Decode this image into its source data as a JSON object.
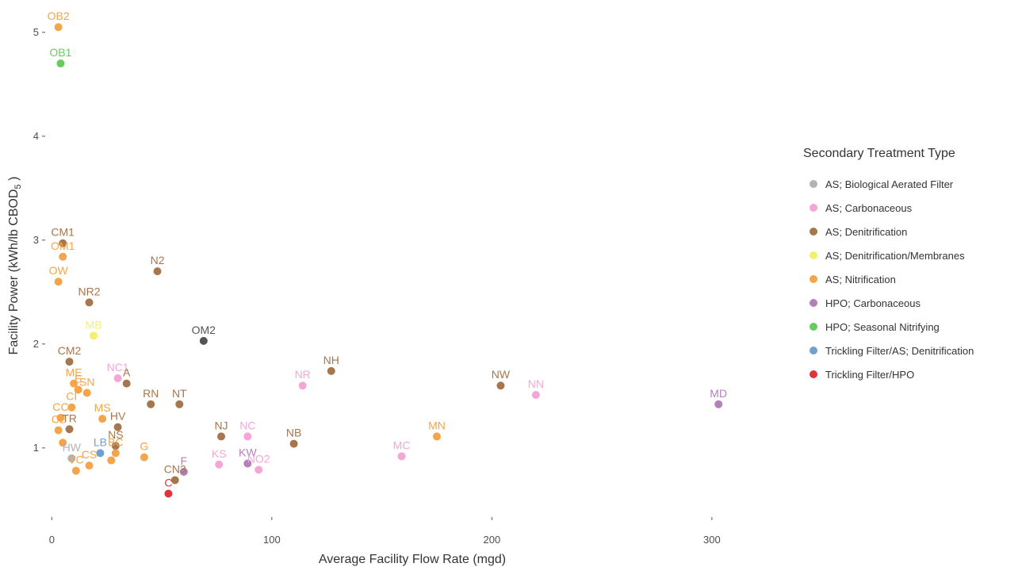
{
  "chart_data": {
    "type": "scatter",
    "xlabel": "Average Facility Flow Rate (mgd)",
    "ylabel": "Facility Power (kWh/lb CBOD",
    "ylabel_sub": "5",
    "ylabel_end": " )",
    "xlim": [
      -3,
      335
    ],
    "ylim": [
      0.35,
      5.25
    ],
    "x_ticks": [
      0,
      100,
      200,
      300
    ],
    "y_ticks": [
      1,
      2,
      3,
      4,
      5
    ],
    "grid": false,
    "legend": {
      "title": "Secondary Treatment Type",
      "position": "right",
      "entries": [
        {
          "name": "AS; Biological Aerated Filter",
          "color": "#b3b3b3"
        },
        {
          "name": "AS; Carbonaceous",
          "color": "#f4a6d7"
        },
        {
          "name": "AS; Denitrification",
          "color": "#a6764d"
        },
        {
          "name": "AS; Denitrification/Membranes",
          "color": "#f5f06a"
        },
        {
          "name": "AS; Nitrification",
          "color": "#f4a44a"
        },
        {
          "name": "HPO; Carbonaceous",
          "color": "#b77fb8"
        },
        {
          "name": "HPO; Seasonal Nitrifying",
          "color": "#66cc5c"
        },
        {
          "name": "Trickling Filter/AS; Denitrification",
          "color": "#6fa0cf"
        },
        {
          "name": "Trickling Filter/HPO",
          "color": "#e3333a"
        }
      ]
    },
    "points": [
      {
        "label": "OB2",
        "x": 3,
        "y": 5.05,
        "color": "#f4a44a"
      },
      {
        "label": "OB1",
        "x": 4,
        "y": 4.7,
        "color": "#66cc5c"
      },
      {
        "label": "CM1",
        "x": 5,
        "y": 2.97,
        "color": "#a6764d"
      },
      {
        "label": "OM1",
        "x": 5,
        "y": 2.84,
        "color": "#f4a44a"
      },
      {
        "label": "OW",
        "x": 3,
        "y": 2.6,
        "color": "#f4a44a"
      },
      {
        "label": "N2",
        "x": 48,
        "y": 2.7,
        "color": "#a6764d"
      },
      {
        "label": "NR2",
        "x": 17,
        "y": 2.4,
        "color": "#a6764d"
      },
      {
        "label": "MB",
        "x": 19,
        "y": 2.08,
        "color": "#f5f06a"
      },
      {
        "label": "OM2",
        "x": 69,
        "y": 2.03,
        "color": "#555555"
      },
      {
        "label": "CM2",
        "x": 8,
        "y": 1.83,
        "color": "#a6764d"
      },
      {
        "label": "NC1",
        "x": 30,
        "y": 1.67,
        "color": "#f4a6d7"
      },
      {
        "label": "A",
        "x": 34,
        "y": 1.62,
        "color": "#a6764d"
      },
      {
        "label": "ME",
        "x": 10,
        "y": 1.62,
        "color": "#f4a44a"
      },
      {
        "label": "NR",
        "x": 114,
        "y": 1.6,
        "color": "#f4a6d7"
      },
      {
        "label": "NH",
        "x": 127,
        "y": 1.74,
        "color": "#a6764d"
      },
      {
        "label": "NW",
        "x": 204,
        "y": 1.6,
        "color": "#a6764d"
      },
      {
        "label": "NN",
        "x": 220,
        "y": 1.51,
        "color": "#f4a6d7"
      },
      {
        "label": "MD",
        "x": 303,
        "y": 1.42,
        "color": "#b77fb8"
      },
      {
        "label": "RN",
        "x": 45,
        "y": 1.42,
        "color": "#a6764d"
      },
      {
        "label": "NT",
        "x": 58,
        "y": 1.42,
        "color": "#a6764d"
      },
      {
        "label": "SN",
        "x": 16,
        "y": 1.53,
        "color": "#f4a44a"
      },
      {
        "label": "E",
        "x": 12,
        "y": 1.56,
        "color": "#f4a44a"
      },
      {
        "label": "CI",
        "x": 9,
        "y": 1.39,
        "color": "#f4a44a"
      },
      {
        "label": "CC",
        "x": 4,
        "y": 1.29,
        "color": "#f4a44a"
      },
      {
        "label": "MS",
        "x": 23,
        "y": 1.28,
        "color": "#f4a44a"
      },
      {
        "label": "HV",
        "x": 30,
        "y": 1.2,
        "color": "#a6764d"
      },
      {
        "label": "TR",
        "x": 8,
        "y": 1.18,
        "color": "#a6764d"
      },
      {
        "label": "CL",
        "x": 3,
        "y": 1.17,
        "color": "#f4a44a"
      },
      {
        "label": "NJ",
        "x": 77,
        "y": 1.11,
        "color": "#a6764d"
      },
      {
        "label": "NC",
        "x": 89,
        "y": 1.11,
        "color": "#f4a6d7"
      },
      {
        "label": "NB",
        "x": 110,
        "y": 1.04,
        "color": "#a6764d"
      },
      {
        "label": "MN",
        "x": 175,
        "y": 1.11,
        "color": "#f4a44a"
      },
      {
        "label": "MC",
        "x": 159,
        "y": 0.92,
        "color": "#f4a6d7"
      },
      {
        "label": "NS",
        "x": 29,
        "y": 1.02,
        "color": "#a6764d"
      },
      {
        "label": "LB",
        "x": 22,
        "y": 0.95,
        "color": "#6fa0cf"
      },
      {
        "label": "BC",
        "x": 29,
        "y": 0.95,
        "color": "#f4a44a"
      },
      {
        "label": "HW",
        "x": 9,
        "y": 0.9,
        "color": "#b3b3b3"
      },
      {
        "label": "CS",
        "x": 17,
        "y": 0.83,
        "color": "#f4a44a"
      },
      {
        "label": "VC",
        "x": 11,
        "y": 0.78,
        "color": "#f4a44a"
      },
      {
        "label": "G",
        "x": 42,
        "y": 0.91,
        "color": "#f4a44a"
      },
      {
        "label": "KS",
        "x": 76,
        "y": 0.84,
        "color": "#f4a6d7"
      },
      {
        "label": "KW",
        "x": 89,
        "y": 0.85,
        "color": "#b77fb8"
      },
      {
        "label": "NO2",
        "x": 94,
        "y": 0.79,
        "color": "#f4a6d7"
      },
      {
        "label": "F",
        "x": 60,
        "y": 0.77,
        "color": "#b77fb8"
      },
      {
        "label": "CN3",
        "x": 56,
        "y": 0.69,
        "color": "#a6764d"
      },
      {
        "label": "C",
        "x": 53,
        "y": 0.56,
        "color": "#e3333a"
      },
      {
        "label": "",
        "x": 5,
        "y": 1.05,
        "color": "#f4a44a"
      },
      {
        "label": "",
        "x": 27,
        "y": 0.88,
        "color": "#f4a44a"
      }
    ]
  }
}
